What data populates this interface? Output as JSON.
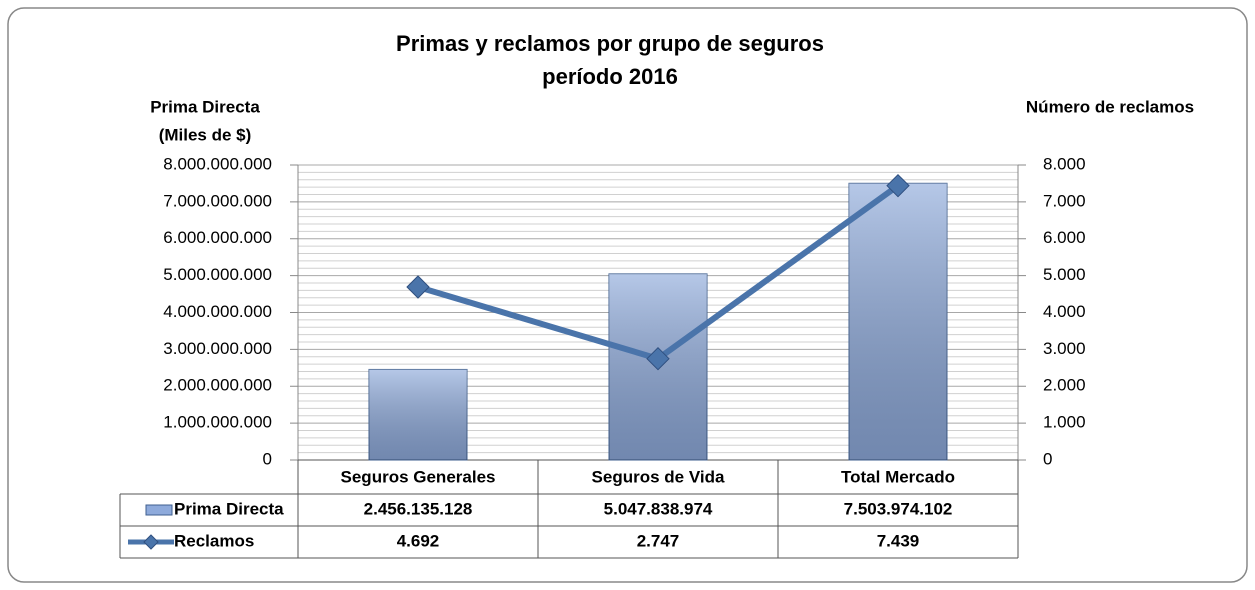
{
  "chart_data": {
    "type": "bar",
    "title": "Primas y reclamos por grupo de seguros",
    "subtitle": "período 2016",
    "ylabel": [
      "Prima Directa",
      "(Miles de $)"
    ],
    "y2label": "Número de reclamos",
    "categories": [
      "Seguros Generales",
      "Seguros de Vida",
      "Total Mercado"
    ],
    "series": [
      {
        "name": "Prima Directa",
        "type": "bar",
        "color": "#8eaadb",
        "values": [
          2456135128,
          5047838974,
          7503974102
        ],
        "value_labels": [
          "2.456.135.128",
          "5.047.838.974",
          "7.503.974.102"
        ]
      },
      {
        "name": "Reclamos",
        "type": "line",
        "axis": "y2",
        "color": "#4a74aa",
        "values": [
          4692,
          2747,
          7439
        ],
        "value_labels": [
          "4.692",
          "2.747",
          "7.439"
        ]
      }
    ],
    "ylim": [
      0,
      8000000000
    ],
    "yticks": [
      0,
      {
        "value": 1000000000,
        "label": "1.000.000.000"
      },
      {
        "value": 2000000000,
        "label": "2.000.000.000"
      },
      {
        "value": 3000000000,
        "label": "3.000.000.000"
      },
      {
        "value": 4000000000,
        "label": "4.000.000.000"
      },
      {
        "value": 5000000000,
        "label": "5.000.000.000"
      },
      {
        "value": 6000000000,
        "label": "6.000.000.000"
      },
      {
        "value": 7000000000,
        "label": "7.000.000.000"
      },
      {
        "value": 8000000000,
        "label": "8.000.000.000"
      }
    ],
    "y2lim": [
      0,
      8000
    ],
    "y2ticks": [
      0,
      {
        "value": 1000,
        "label": "1.000"
      },
      {
        "value": 2000,
        "label": "2.000"
      },
      {
        "value": 3000,
        "label": "3.000"
      },
      {
        "value": 4000,
        "label": "4.000"
      },
      {
        "value": 5000,
        "label": "5.000"
      },
      {
        "value": 6000,
        "label": "6.000"
      },
      {
        "value": 7000,
        "label": "7.000"
      },
      {
        "value": 8000,
        "label": "8.000"
      }
    ],
    "grid": true
  }
}
